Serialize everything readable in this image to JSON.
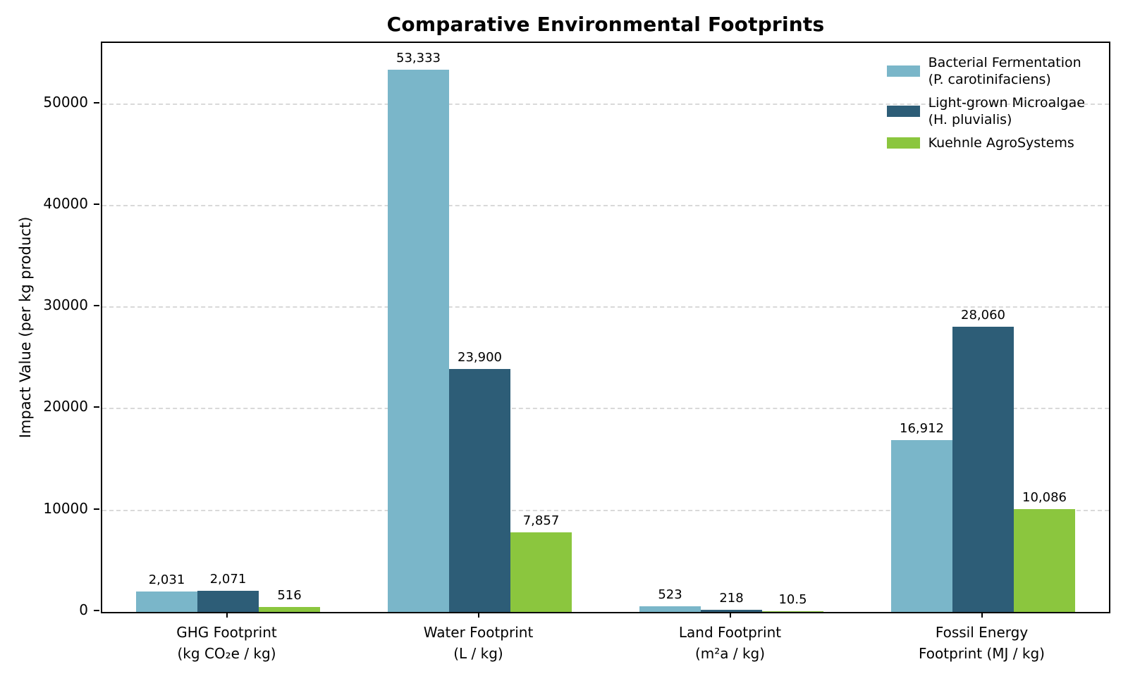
{
  "chart_data": {
    "type": "bar",
    "title": "Comparative Environmental Footprints",
    "ylabel": "Impact Value (per kg product)",
    "xlabel": "",
    "ylim": [
      0,
      56000
    ],
    "grid": "horizontal-dashed",
    "gridline_color": "#d9d9d9",
    "legend_position": "upper-right-inside-frameless",
    "yticks": [
      {
        "value": 0,
        "label": "0"
      },
      {
        "value": 10000,
        "label": "10000"
      },
      {
        "value": 20000,
        "label": "20000"
      },
      {
        "value": 30000,
        "label": "30000"
      },
      {
        "value": 40000,
        "label": "40000"
      },
      {
        "value": 50000,
        "label": "50000"
      }
    ],
    "categories": [
      {
        "key": "ghg",
        "line1": "GHG Footprint",
        "line2": "(kg CO₂e / kg)"
      },
      {
        "key": "water",
        "line1": "Water Footprint",
        "line2": "(L / kg)"
      },
      {
        "key": "land",
        "line1": "Land Footprint",
        "line2": "(m²a / kg)"
      },
      {
        "key": "fossil-energy",
        "line1": "Fossil Energy",
        "line2": "Footprint (MJ / kg)"
      }
    ],
    "series": [
      {
        "key": "bacterial-fermentation",
        "legend_line1": "Bacterial Fermentation",
        "legend_line2": "(P. carotinifaciens)",
        "color": "#7ab6c9",
        "values": [
          2031,
          53333,
          523,
          16912
        ],
        "value_labels": [
          "2,031",
          "53,333",
          "523",
          "16,912"
        ]
      },
      {
        "key": "light-grown-microalgae",
        "legend_line1": "Light-grown Microalgae",
        "legend_line2": "(H. pluvialis)",
        "color": "#2d5d77",
        "values": [
          2071,
          23900,
          218,
          28060
        ],
        "value_labels": [
          "2,071",
          "23,900",
          "218",
          "28,060"
        ]
      },
      {
        "key": "kuehnle-agrosystems",
        "legend_line1": "Kuehnle AgroSystems",
        "legend_line2": "",
        "color": "#8bc63e",
        "values": [
          516,
          7857,
          10.5,
          10086
        ],
        "value_labels": [
          "516",
          "7,857",
          "10.5",
          "10,086"
        ]
      }
    ]
  }
}
